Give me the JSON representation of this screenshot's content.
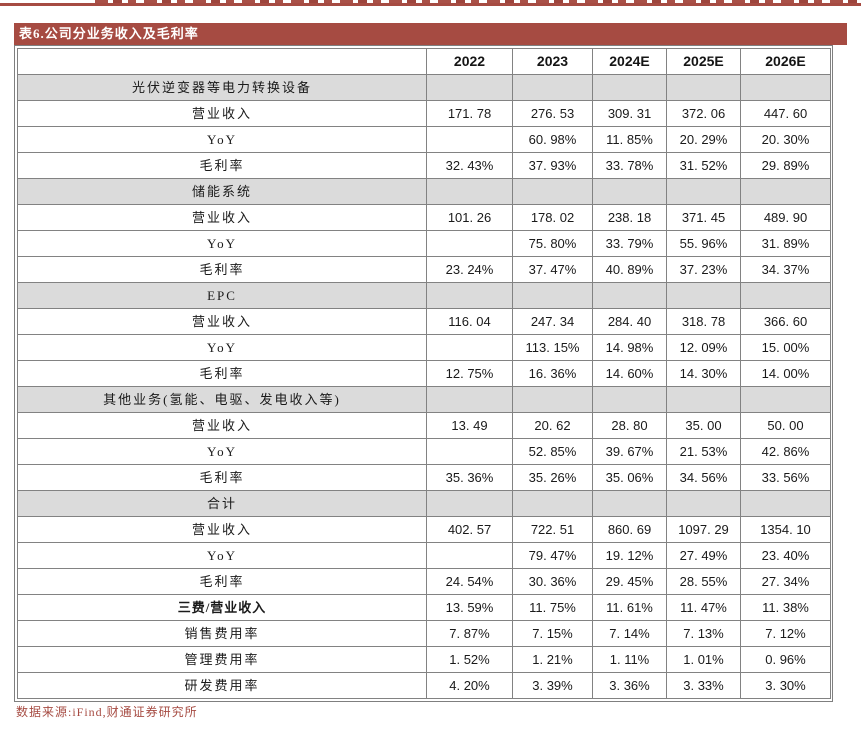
{
  "accent_color": "#a64b42",
  "section_row_color": "#dbdbdb",
  "border_color": "#828282",
  "title_bar": {
    "text": "表6.公司分业务收入及毛利率"
  },
  "table": {
    "header": [
      "",
      "2022",
      "2023",
      "2024E",
      "2025E",
      "2026E"
    ],
    "rows": [
      {
        "type": "section",
        "label": "光伏逆变器等电力转换设备",
        "values": [
          "",
          "",
          "",
          "",
          ""
        ]
      },
      {
        "type": "data",
        "label": "营业收入",
        "values": [
          "171. 78",
          "276. 53",
          "309. 31",
          "372. 06",
          "447. 60"
        ]
      },
      {
        "type": "data",
        "label": "YoY",
        "values": [
          "",
          "60. 98%",
          "11. 85%",
          "20. 29%",
          "20. 30%"
        ]
      },
      {
        "type": "data",
        "label": "毛利率",
        "values": [
          "32. 43%",
          "37. 93%",
          "33. 78%",
          "31. 52%",
          "29. 89%"
        ]
      },
      {
        "type": "section",
        "label": "储能系统",
        "values": [
          "",
          "",
          "",
          "",
          ""
        ]
      },
      {
        "type": "data",
        "label": "营业收入",
        "values": [
          "101. 26",
          "178. 02",
          "238. 18",
          "371. 45",
          "489. 90"
        ]
      },
      {
        "type": "data",
        "label": "YoY",
        "values": [
          "",
          "75. 80%",
          "33. 79%",
          "55. 96%",
          "31. 89%"
        ]
      },
      {
        "type": "data",
        "label": "毛利率",
        "values": [
          "23. 24%",
          "37. 47%",
          "40. 89%",
          "37. 23%",
          "34. 37%"
        ]
      },
      {
        "type": "section",
        "label": "EPC",
        "values": [
          "",
          "",
          "",
          "",
          ""
        ]
      },
      {
        "type": "data",
        "label": "营业收入",
        "values": [
          "116. 04",
          "247. 34",
          "284. 40",
          "318. 78",
          "366. 60"
        ]
      },
      {
        "type": "data",
        "label": "YoY",
        "values": [
          "",
          "113. 15%",
          "14. 98%",
          "12. 09%",
          "15. 00%"
        ]
      },
      {
        "type": "data",
        "label": "毛利率",
        "values": [
          "12. 75%",
          "16. 36%",
          "14. 60%",
          "14. 30%",
          "14. 00%"
        ]
      },
      {
        "type": "section",
        "label": "其他业务(氢能、电驱、发电收入等)",
        "values": [
          "",
          "",
          "",
          "",
          ""
        ]
      },
      {
        "type": "data",
        "label": "营业收入",
        "values": [
          "13. 49",
          "20. 62",
          "28. 80",
          "35. 00",
          "50. 00"
        ]
      },
      {
        "type": "data",
        "label": "YoY",
        "values": [
          "",
          "52. 85%",
          "39. 67%",
          "21. 53%",
          "42. 86%"
        ]
      },
      {
        "type": "data",
        "label": "毛利率",
        "values": [
          "35. 36%",
          "35. 26%",
          "35. 06%",
          "34. 56%",
          "33. 56%"
        ]
      },
      {
        "type": "section",
        "label": "合计",
        "values": [
          "",
          "",
          "",
          "",
          ""
        ]
      },
      {
        "type": "data",
        "label": "营业收入",
        "values": [
          "402. 57",
          "722. 51",
          "860. 69",
          "1097. 29",
          "1354. 10"
        ]
      },
      {
        "type": "data",
        "label": "YoY",
        "values": [
          "",
          "79. 47%",
          "19. 12%",
          "27. 49%",
          "23. 40%"
        ]
      },
      {
        "type": "data",
        "label": "毛利率",
        "values": [
          "24. 54%",
          "30. 36%",
          "29. 45%",
          "28. 55%",
          "27. 34%"
        ]
      },
      {
        "type": "data",
        "bold": true,
        "label": "三费/营业收入",
        "values": [
          "13. 59%",
          "11. 75%",
          "11. 61%",
          "11. 47%",
          "11. 38%"
        ]
      },
      {
        "type": "data",
        "label": "销售费用率",
        "values": [
          "7. 87%",
          "7. 15%",
          "7. 14%",
          "7. 13%",
          "7. 12%"
        ]
      },
      {
        "type": "data",
        "label": "管理费用率",
        "values": [
          "1. 52%",
          "1. 21%",
          "1. 11%",
          "1. 01%",
          "0. 96%"
        ]
      },
      {
        "type": "data",
        "label": "研发费用率",
        "values": [
          "4. 20%",
          "3. 39%",
          "3. 36%",
          "3. 33%",
          "3. 30%"
        ]
      }
    ]
  },
  "footer": {
    "text": "数据来源:iFind,财通证券研究所"
  }
}
